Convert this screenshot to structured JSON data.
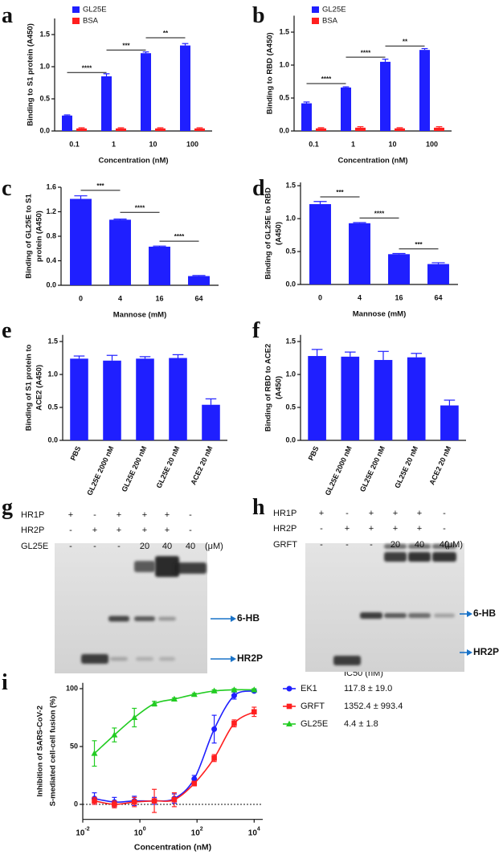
{
  "chart_data": [
    {
      "panel": "a",
      "type": "bar",
      "ylabel": "Binding to S1 protein (A450)",
      "xlabel": "Concentration (nM)",
      "categories": [
        "0.1",
        "1",
        "10",
        "100"
      ],
      "series": [
        {
          "name": "GL25E",
          "color": "#1f1fff",
          "values": [
            0.24,
            0.85,
            1.21,
            1.33
          ],
          "errors": [
            0.01,
            0.04,
            0.02,
            0.03
          ]
        },
        {
          "name": "BSA",
          "color": "#ff1f1f",
          "values": [
            0.04,
            0.04,
            0.04,
            0.04
          ],
          "errors": [
            0.01,
            0.01,
            0.01,
            0.01
          ]
        }
      ],
      "ylim": [
        0,
        1.75
      ],
      "yticks": [
        {
          "value": 0,
          "label": "0.0"
        },
        0.5,
        {
          "value": 1,
          "label": "1.0"
        },
        1.5
      ],
      "annotations": [
        {
          "text": "****",
          "y": 0.91
        },
        {
          "text": "***",
          "y": 1.26
        },
        {
          "text": "**",
          "y": 1.45
        }
      ]
    },
    {
      "panel": "b",
      "type": "bar",
      "ylabel": "Binding to RBD (A450)",
      "xlabel": "Concentration (nM)",
      "categories": [
        "0.1",
        "1",
        "10",
        "100"
      ],
      "series": [
        {
          "name": "GL25E",
          "color": "#1f1fff",
          "values": [
            0.42,
            0.66,
            1.05,
            1.23
          ],
          "errors": [
            0.02,
            0.01,
            0.04,
            0.02
          ]
        },
        {
          "name": "BSA",
          "color": "#ff1f1f",
          "values": [
            0.04,
            0.05,
            0.04,
            0.05
          ],
          "errors": [
            0.01,
            0.015,
            0.01,
            0.015
          ]
        }
      ],
      "ylim": [
        0,
        1.75
      ],
      "yticks": [
        {
          "value": 0,
          "label": "0.0"
        },
        0.5,
        {
          "value": 1,
          "label": "1.0"
        },
        1.5
      ],
      "annotations": [
        {
          "text": "****",
          "y": 0.72
        },
        {
          "text": "****",
          "y": 1.12
        },
        {
          "text": "**",
          "y": 1.29
        }
      ]
    },
    {
      "panel": "c",
      "type": "bar",
      "ylabel": [
        "Binding of GL25E to S1",
        "protein (A450)"
      ],
      "xlabel": "Mannose (mM)",
      "categories": [
        "0",
        "4",
        "16",
        "64"
      ],
      "color": "#1f1fff",
      "values": [
        1.41,
        1.07,
        0.63,
        0.15
      ],
      "errors": [
        0.05,
        0.01,
        0.01,
        0.01
      ],
      "ylim": [
        0,
        1.6
      ],
      "yticks": [
        {
          "value": 0,
          "label": "0.0"
        },
        0.4,
        0.8,
        1.2,
        1.6
      ],
      "annotations": [
        {
          "text": "***",
          "y": 1.55
        },
        {
          "text": "****",
          "y": 1.19
        },
        {
          "text": "****",
          "y": 0.72
        }
      ]
    },
    {
      "panel": "d",
      "type": "bar",
      "ylabel": [
        "Binding of GL25E to RBD",
        "(A450)"
      ],
      "xlabel": "Mannose (mM)",
      "categories": [
        "0",
        "4",
        "16",
        "64"
      ],
      "color": "#1f1fff",
      "values": [
        1.22,
        0.93,
        0.46,
        0.31
      ],
      "errors": [
        0.04,
        0.01,
        0.01,
        0.02
      ],
      "ylim": [
        0,
        1.55
      ],
      "yticks": [
        {
          "value": 0,
          "label": "0.0"
        },
        0.5,
        {
          "value": 1,
          "label": "1.0"
        },
        1.5
      ],
      "annotations": [
        {
          "text": "***",
          "y": 1.33
        },
        {
          "text": "****",
          "y": 1.01
        },
        {
          "text": "***",
          "y": 0.54
        }
      ]
    },
    {
      "panel": "e",
      "type": "bar",
      "ylabel": [
        "Binding of S1 protein to",
        "ACE2 (A450)"
      ],
      "categories": [
        "PBS",
        "GL25E 2000 nM",
        "GL25E 200 nM",
        "GL25E 20 nM",
        "ACE2 20 nM"
      ],
      "color": "#1f1fff",
      "values": [
        1.24,
        1.21,
        1.24,
        1.25,
        0.54
      ],
      "errors": [
        0.04,
        0.08,
        0.03,
        0.05,
        0.09
      ],
      "ylim": [
        0,
        1.6
      ],
      "yticks": [
        {
          "value": 0,
          "label": "0.0"
        },
        0.5,
        {
          "value": 1,
          "label": "1.0"
        },
        1.5
      ]
    },
    {
      "panel": "f",
      "type": "bar",
      "ylabel": [
        "Binding of RBD to ACE2",
        "(A450)"
      ],
      "categories": [
        "PBS",
        "GL25E 2000 nM",
        "GL25E 200 nM",
        "GL25E 20 nM",
        "ACE2 20 nM"
      ],
      "color": "#1f1fff",
      "values": [
        1.28,
        1.27,
        1.22,
        1.26,
        0.53
      ],
      "errors": [
        0.1,
        0.07,
        0.13,
        0.06,
        0.08
      ],
      "ylim": [
        0,
        1.6
      ],
      "yticks": [
        {
          "value": 0,
          "label": "0.0"
        },
        0.5,
        {
          "value": 1,
          "label": "1.0"
        },
        1.5
      ]
    },
    {
      "panel": "i",
      "type": "line",
      "ylabel": [
        "Inhibition of SARS-CoV-2",
        "S-mediated cell-cell fusion (%)"
      ],
      "xlabel": "Concentration (nM)",
      "log_x": true,
      "zero_line": true,
      "x": [
        0.0256,
        0.128,
        0.64,
        3.2,
        16,
        80,
        400,
        2000,
        10000
      ],
      "xlim": [
        0.01,
        20000
      ],
      "xticks": [
        {
          "value": 0.01,
          "label": "10",
          "exponent": "-2"
        },
        {
          "value": 1,
          "label": "10",
          "exponent": "0"
        },
        {
          "value": 100,
          "label": "10",
          "exponent": "2"
        },
        {
          "value": 10000,
          "label": "10",
          "exponent": "4"
        }
      ],
      "ylim": [
        -13,
        105
      ],
      "yticks": [
        0,
        50,
        100
      ],
      "legend_title": "IC50 (nM)",
      "series": [
        {
          "name": "EK1",
          "ic50": "117.8 ± 19.0",
          "color": "#1f1fff",
          "marker": "circle",
          "values": [
            5,
            2,
            3,
            3,
            5,
            22,
            65,
            94,
            98
          ],
          "errors": [
            5,
            4,
            4,
            3,
            4,
            3,
            12,
            3,
            1
          ]
        },
        {
          "name": "GRFT",
          "ic50": "1352.4 ± 993.4",
          "color": "#ff1f1f",
          "marker": "square",
          "values": [
            3,
            0,
            2,
            3,
            4,
            18,
            40,
            70,
            80
          ],
          "errors": [
            3,
            3,
            4,
            10,
            6,
            2,
            3,
            3,
            4
          ]
        },
        {
          "name": "GL25E",
          "ic50": "4.4 ± 1.8",
          "color": "#22cc22",
          "marker": "triangle",
          "values": [
            44,
            60,
            75,
            87,
            91,
            95,
            98,
            99,
            99
          ],
          "errors": [
            11,
            6,
            8,
            2,
            1,
            1,
            1,
            1,
            1
          ]
        }
      ]
    }
  ],
  "gels": [
    {
      "panel": "g",
      "rows": [
        {
          "label": "HR1P",
          "lanes": [
            "+",
            "-",
            "+",
            "+",
            "+",
            "-"
          ]
        },
        {
          "label": "HR2P",
          "lanes": [
            "-",
            "+",
            "+",
            "+",
            "+",
            "-"
          ]
        },
        {
          "label": "GL25E",
          "lanes": [
            "-",
            "-",
            "-",
            "20",
            "40",
            "40"
          ]
        }
      ],
      "unit": "(μM)",
      "bands": [
        "6-HB",
        "HR2P"
      ]
    },
    {
      "panel": "h",
      "rows": [
        {
          "label": "HR1P",
          "lanes": [
            "+",
            "-",
            "+",
            "+",
            "+",
            "-"
          ]
        },
        {
          "label": "HR2P",
          "lanes": [
            "-",
            "+",
            "+",
            "+",
            "+",
            "-"
          ]
        },
        {
          "label": "GRFT",
          "lanes": [
            "-",
            "-",
            "-",
            "20",
            "40",
            "40"
          ]
        }
      ],
      "unit": "(μM)",
      "bands": [
        "6-HB",
        "HR2P"
      ]
    }
  ]
}
